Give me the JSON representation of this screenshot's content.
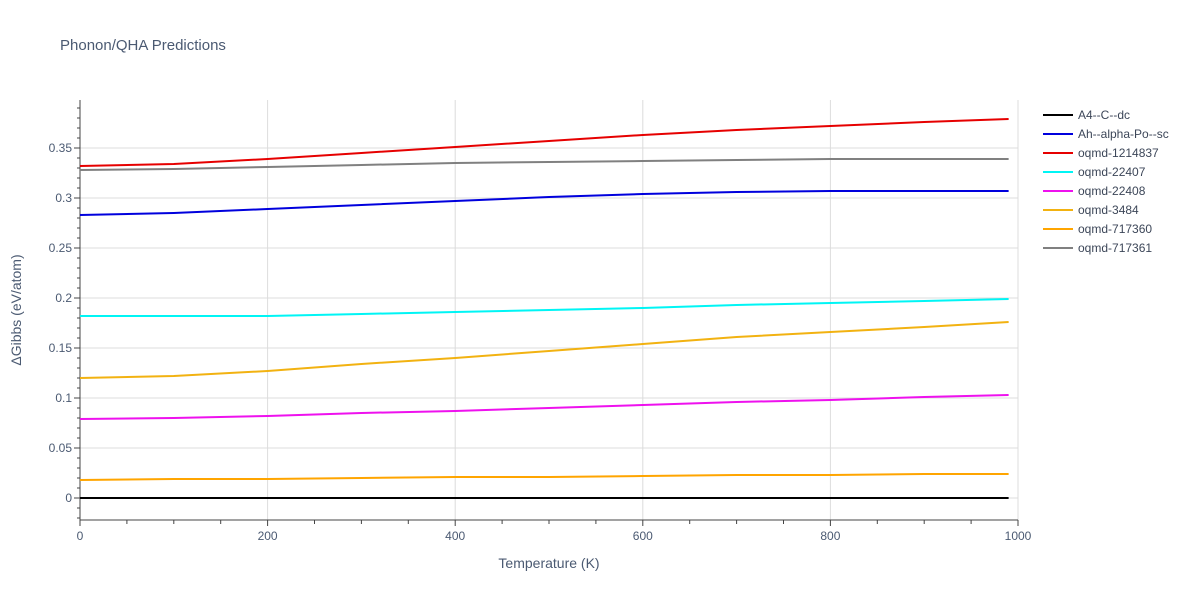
{
  "chart_data": {
    "type": "line",
    "title": "Phonon/QHA Predictions",
    "xlabel": "Temperature (K)",
    "ylabel": "ΔGibbs (eV/atom)",
    "xlim": [
      0,
      1000
    ],
    "ylim": [
      -0.022,
      0.398
    ],
    "x_ticks": [
      0,
      200,
      400,
      600,
      800,
      1000
    ],
    "x_tick_labels": [
      "0",
      "200",
      "400",
      "600",
      "800",
      "1000"
    ],
    "y_ticks": [
      0,
      0.05,
      0.1,
      0.15,
      0.2,
      0.25,
      0.3,
      0.35
    ],
    "y_tick_labels": [
      "0",
      "0.05",
      "0.1",
      "0.15",
      "0.2",
      "0.25",
      "0.3",
      "0.35"
    ],
    "grid": true,
    "legend_position": "top-right",
    "x": [
      0,
      100,
      200,
      300,
      400,
      500,
      600,
      700,
      800,
      900,
      990
    ],
    "series": [
      {
        "name": "A4--C--dc",
        "color": "#000000",
        "values": [
          0,
          0,
          0,
          0,
          0,
          0,
          0,
          0,
          0,
          0,
          0
        ]
      },
      {
        "name": "Ah--alpha-Po--sc",
        "color": "#0000dd",
        "values": [
          0.283,
          0.285,
          0.289,
          0.293,
          0.297,
          0.301,
          0.304,
          0.306,
          0.307,
          0.307,
          0.307
        ]
      },
      {
        "name": "oqmd-1214837",
        "color": "#e60000",
        "values": [
          0.332,
          0.334,
          0.339,
          0.345,
          0.351,
          0.357,
          0.363,
          0.368,
          0.372,
          0.376,
          0.379
        ]
      },
      {
        "name": "oqmd-22407",
        "color": "#00f5f5",
        "values": [
          0.182,
          0.182,
          0.182,
          0.184,
          0.186,
          0.188,
          0.19,
          0.193,
          0.195,
          0.197,
          0.199
        ]
      },
      {
        "name": "oqmd-22408",
        "color": "#ee11ee",
        "values": [
          0.079,
          0.08,
          0.082,
          0.085,
          0.087,
          0.09,
          0.093,
          0.096,
          0.098,
          0.101,
          0.103
        ]
      },
      {
        "name": "oqmd-3484",
        "color": "#f2b211",
        "values": [
          0.12,
          0.122,
          0.127,
          0.134,
          0.14,
          0.147,
          0.154,
          0.161,
          0.166,
          0.171,
          0.176
        ]
      },
      {
        "name": "oqmd-717360",
        "color": "#ffa500",
        "values": [
          0.018,
          0.019,
          0.019,
          0.02,
          0.021,
          0.021,
          0.022,
          0.023,
          0.023,
          0.024,
          0.024
        ]
      },
      {
        "name": "oqmd-717361",
        "color": "#808080",
        "values": [
          0.328,
          0.329,
          0.331,
          0.333,
          0.335,
          0.336,
          0.337,
          0.338,
          0.339,
          0.339,
          0.339
        ]
      }
    ]
  }
}
